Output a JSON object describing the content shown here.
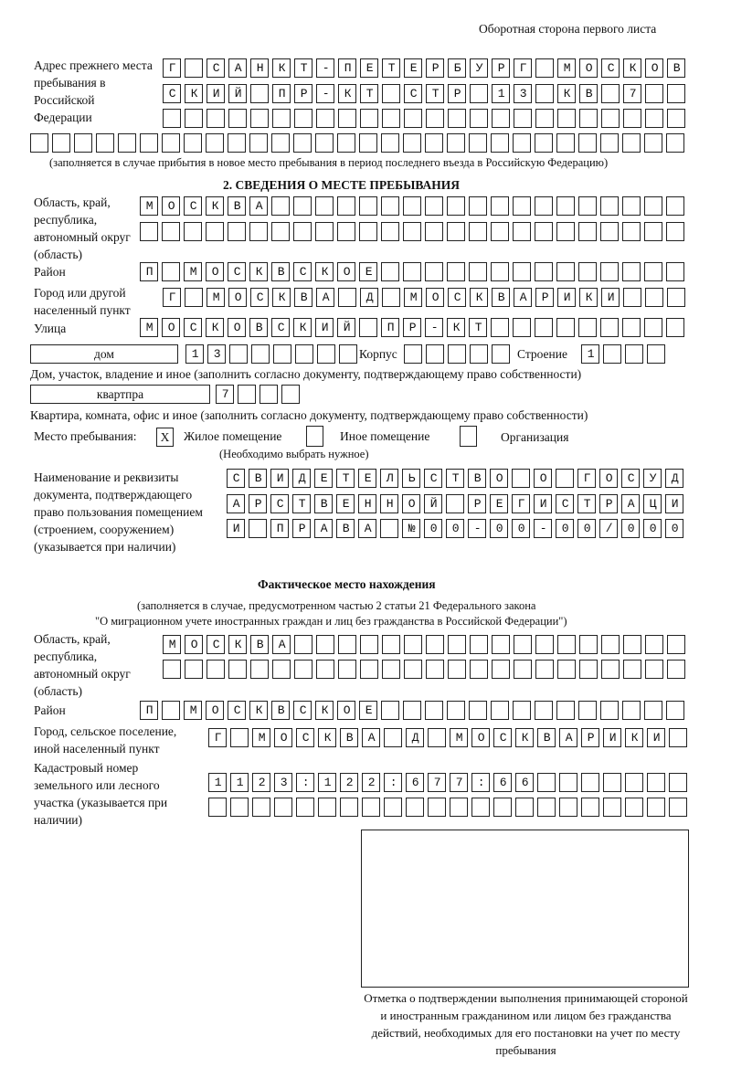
{
  "header": "Оборотная сторона первого листа",
  "prev_address": {
    "label": "Адрес прежнего места пребывания в Российской Федерации",
    "rows": [
      "Г САНКТ-ПЕТЕРБУРГ МОСКОВ",
      "СКИЙ ПР-КТ СТР 13 КВ 7  ",
      "                        ",
      "                              "
    ],
    "note": "(заполняется в случае прибытия в новое место пребывания в период последнего въезда в Российскую Федерацию)"
  },
  "section2": {
    "title": "2. СВЕДЕНИЯ О МЕСТЕ ПРЕБЫВАНИЯ",
    "region_label": "Область, край, республика, автономный округ (область)",
    "region_rows": [
      "МОСКВА                   ",
      "                         "
    ],
    "district_label": "Район",
    "district_row": "П МОСКВСКОЕ              ",
    "city_label": "Город или другой населенный пункт",
    "city_row": "Г МОСКВА Д МОСКВАРИКИ   ",
    "street_label": "Улица",
    "street_row": "МОСКОВСКИЙ ПР-КТ         ",
    "house_type": "дом",
    "house_row": "13      ",
    "korpus_label": "Корпус",
    "korpus_row": "     ",
    "building_label": "Строение",
    "building_row": "1   ",
    "house_note": "Дом, участок, владение и иное (заполнить согласно документу, подтверждающему право собственности)",
    "flat_type": "квартпра",
    "flat_row": "7   ",
    "flat_note": "Квартира, комната, офис и иное (заполнить согласно документу, подтверждающему право собственности)",
    "stay_label": "Место пребывания:",
    "opt1_mark": "X",
    "opt1": "Жилое помещение",
    "opt2_mark": "",
    "opt2": "Иное помещение",
    "opt3_mark": "",
    "opt3": "Организация",
    "choose_note": "(Необходимо выбрать нужное)",
    "doc_label": "Наименование и реквизиты документа, подтверждающего право пользования помещением (строением, сооружением) (указывается при наличии)",
    "doc_rows": [
      "СВИДЕТЕЛЬСТВО О ГОСУД",
      "АРСТВЕННОЙ РЕГИСТРАЦИ",
      "И ПРАВА №00-00-00/000"
    ]
  },
  "actual": {
    "title": "Фактическое место нахождения",
    "note1": "(заполняется в случае, предусмотренном частью 2 статьи 21 Федерального закона",
    "note2": "\"О миграционном учете иностранных граждан и лиц без гражданства в Российской Федерации\")",
    "region_label": "Область, край, республика, автономный округ (область)",
    "region_rows": [
      "МОСКВА                  ",
      "                        "
    ],
    "district_label": "Район",
    "district_row": "П МОСКВСКОЕ              ",
    "city_label": "Город, сельское поселение, иной населенный пункт",
    "city_row": "Г МОСКВА Д МОСКВАРИКИ ",
    "cadastral_label": "Кадастровый номер земельного или лесного участка (указывается при наличии)",
    "cadastral_rows": [
      "1123:122:677:66       ",
      "                      "
    ]
  },
  "stamp_caption": "Отметка о подтверждении выполнения принимающей стороной и иностранным гражданином или лицом без гражданства действий, необходимых для его постановки на учет по месту пребывания"
}
